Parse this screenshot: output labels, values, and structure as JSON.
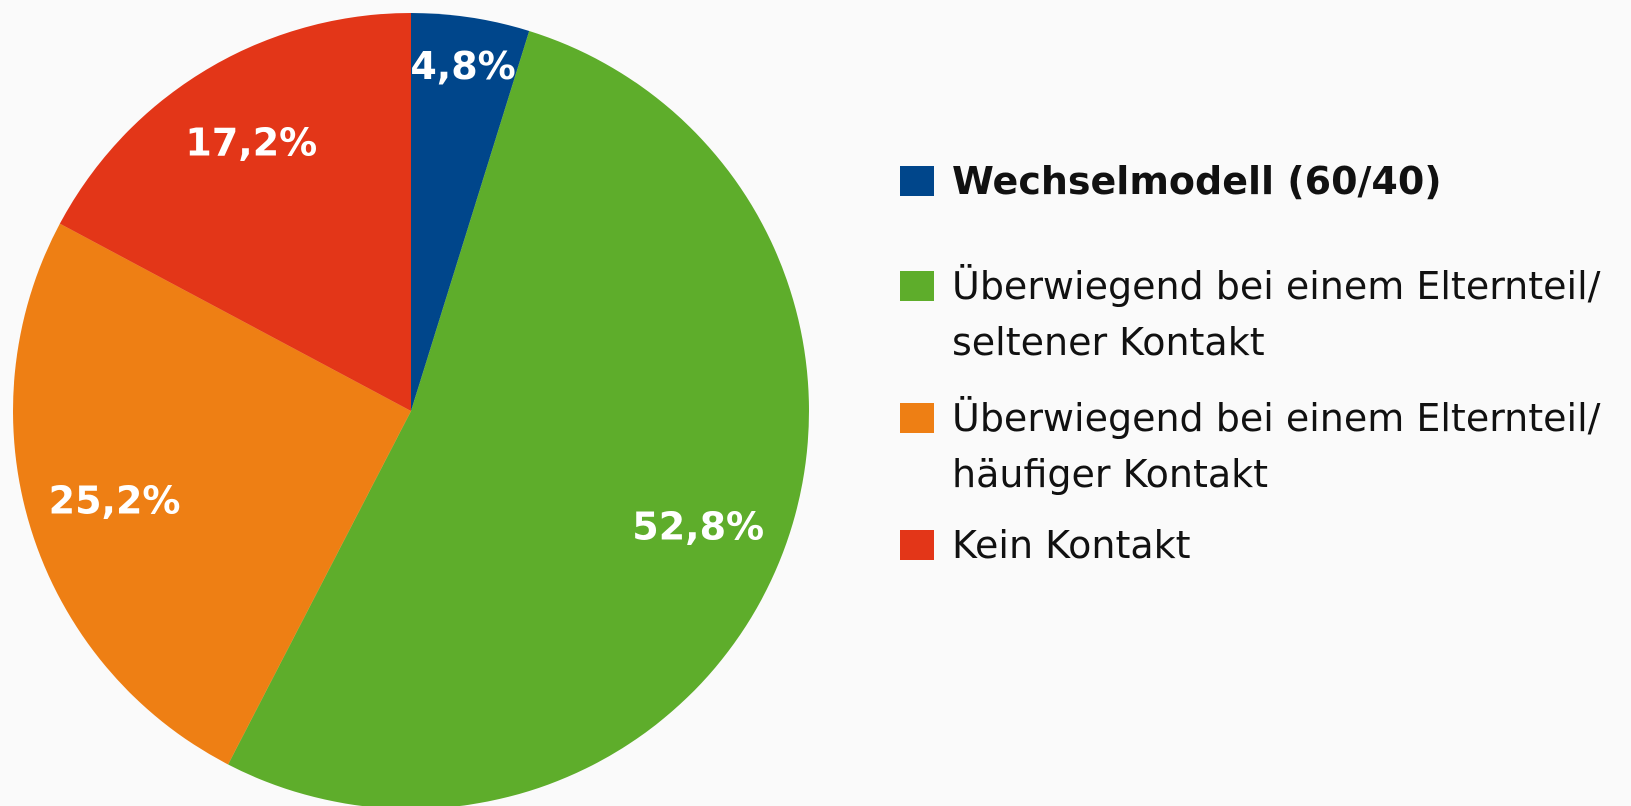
{
  "chart_data": {
    "type": "pie",
    "categories": [
      "Wechselmodell (60/40)",
      "Überwiegend bei einem Elternteil/\nseltener Kontakt",
      "Überwiegend bei einem Elternteil/\nhäufiger Kontakt",
      "Kein Kontakt"
    ],
    "values": [
      4.8,
      52.8,
      25.2,
      17.2
    ],
    "value_labels": [
      "4,8%",
      "52,8%",
      "25,2%",
      "17,2%"
    ],
    "colors": [
      "#00468b",
      "#5ead2b",
      "#ee7f14",
      "#e33618"
    ],
    "legend": "right"
  }
}
